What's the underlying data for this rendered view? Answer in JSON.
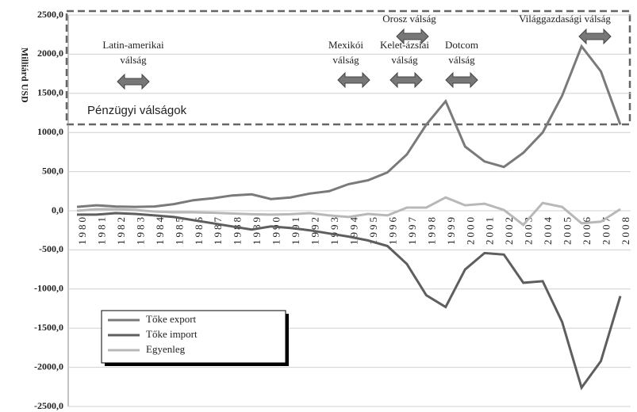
{
  "chart_data": {
    "type": "line",
    "y_label": "Milliárd USD",
    "categories": [
      "1980",
      "1981",
      "1982",
      "1983",
      "1984",
      "1985",
      "1986",
      "1987",
      "1988",
      "1989",
      "1990",
      "1991",
      "1992",
      "1993",
      "1994",
      "1995",
      "1996",
      "1997",
      "1998",
      "1999",
      "2000",
      "2001",
      "2002",
      "2003",
      "2004",
      "2005",
      "2006",
      "2007",
      "2008"
    ],
    "series": [
      {
        "name": "Tőke export",
        "color": "#7a7a7a",
        "values": [
          50,
          70,
          55,
          50,
          55,
          85,
          135,
          160,
          195,
          210,
          150,
          170,
          220,
          250,
          340,
          390,
          490,
          720,
          1100,
          1400,
          820,
          630,
          560,
          740,
          1000,
          1470,
          2100,
          1780,
          1100
        ]
      },
      {
        "name": "Tőke import",
        "color": "#5e5e5e",
        "values": [
          -50,
          -50,
          -30,
          -40,
          -60,
          -80,
          -120,
          -160,
          -200,
          -240,
          -200,
          -220,
          -250,
          -290,
          -330,
          -380,
          -450,
          -680,
          -1080,
          -1230,
          -750,
          -540,
          -560,
          -920,
          -900,
          -1420,
          -2260,
          -1920,
          -1090
        ]
      },
      {
        "name": "Egyenleg",
        "color": "#b8b8b8",
        "values": [
          0,
          20,
          20,
          10,
          -10,
          -20,
          -20,
          -25,
          -35,
          -45,
          -50,
          -45,
          -30,
          -60,
          -80,
          -40,
          -60,
          40,
          40,
          170,
          70,
          90,
          10,
          -180,
          100,
          50,
          -160,
          -140,
          20
        ]
      }
    ],
    "ylim": [
      -2500,
      2500
    ],
    "yticks": [
      {
        "value": -2500,
        "label": "-2500,0"
      },
      {
        "value": -2000,
        "label": "-2000,0"
      },
      {
        "value": -1500,
        "label": "-1500,0"
      },
      {
        "value": -1000,
        "label": "-1000,0"
      },
      {
        "value": -500,
        "label": "-500,0"
      },
      {
        "value": 0,
        "label": "0,0"
      },
      {
        "value": 500,
        "label": "500,0"
      },
      {
        "value": 1000,
        "label": "1000,0"
      },
      {
        "value": 1500,
        "label": "1500,0"
      },
      {
        "value": 2000,
        "label": "2000,0"
      },
      {
        "value": 2500,
        "label": "2500,0"
      }
    ],
    "grid": true,
    "legend": "lower left",
    "box_title": "Pénzügyi válságok",
    "annotations": [
      "Latin-amerikai",
      "válság",
      "Mexikói",
      "válság",
      "Orosz válság",
      "Kelet-ázsiai",
      "válság",
      "Dotcom",
      "válság",
      "Világgazdasági válság"
    ]
  }
}
